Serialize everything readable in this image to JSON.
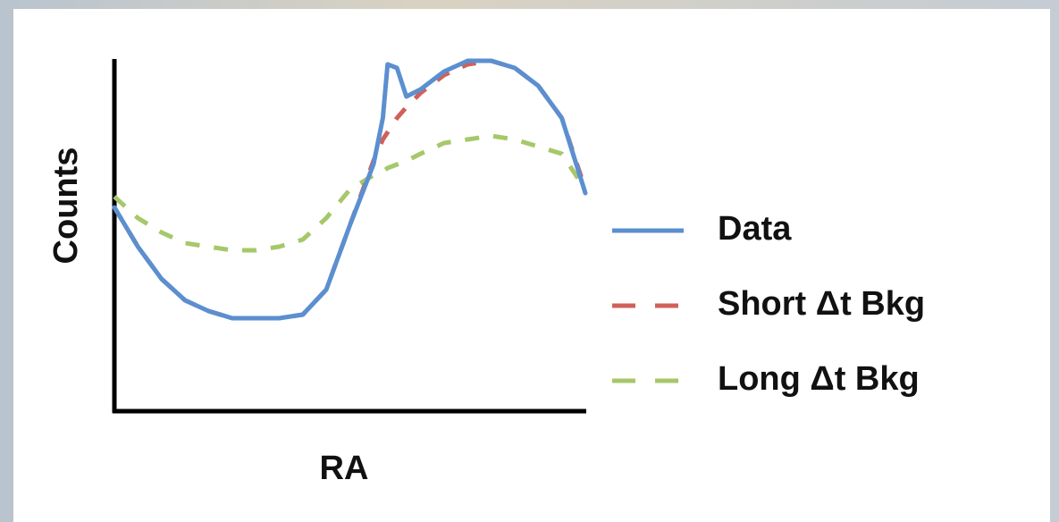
{
  "chart_data": {
    "type": "line",
    "x_label": "RA",
    "y_label": "Counts",
    "x": [
      0,
      5,
      10,
      15,
      20,
      25,
      30,
      35,
      40,
      45,
      50,
      55,
      57,
      58,
      60,
      62,
      65,
      70,
      75,
      80,
      85,
      90,
      95,
      100
    ],
    "xlim": [
      0,
      100
    ],
    "ylim": [
      0,
      100
    ],
    "series": [
      {
        "name": "Data",
        "color": "#5b8fd0",
        "dashed": false,
        "values": [
          57,
          46,
          37,
          31,
          28,
          26,
          26,
          26,
          27,
          34,
          52,
          69,
          82,
          97,
          96,
          88,
          90,
          95,
          98,
          98,
          96,
          91,
          82,
          61
        ]
      },
      {
        "name": "Short Δt Bkg",
        "color": "#d0605a",
        "dashed": true,
        "values": [
          57,
          46,
          37,
          31,
          28,
          26,
          26,
          26,
          27,
          34,
          52,
          70,
          76,
          78,
          82,
          85,
          89,
          94,
          97,
          98,
          96,
          91,
          82,
          62
        ]
      },
      {
        "name": "Long Δt Bkg",
        "color": "#a6c86a",
        "dashed": true,
        "values": [
          60,
          54,
          50,
          47,
          46,
          45,
          45,
          46,
          48,
          54,
          62,
          66,
          67,
          68,
          69,
          70,
          72,
          75,
          76,
          77,
          76,
          74,
          72,
          62
        ]
      }
    ],
    "legend": "right"
  }
}
